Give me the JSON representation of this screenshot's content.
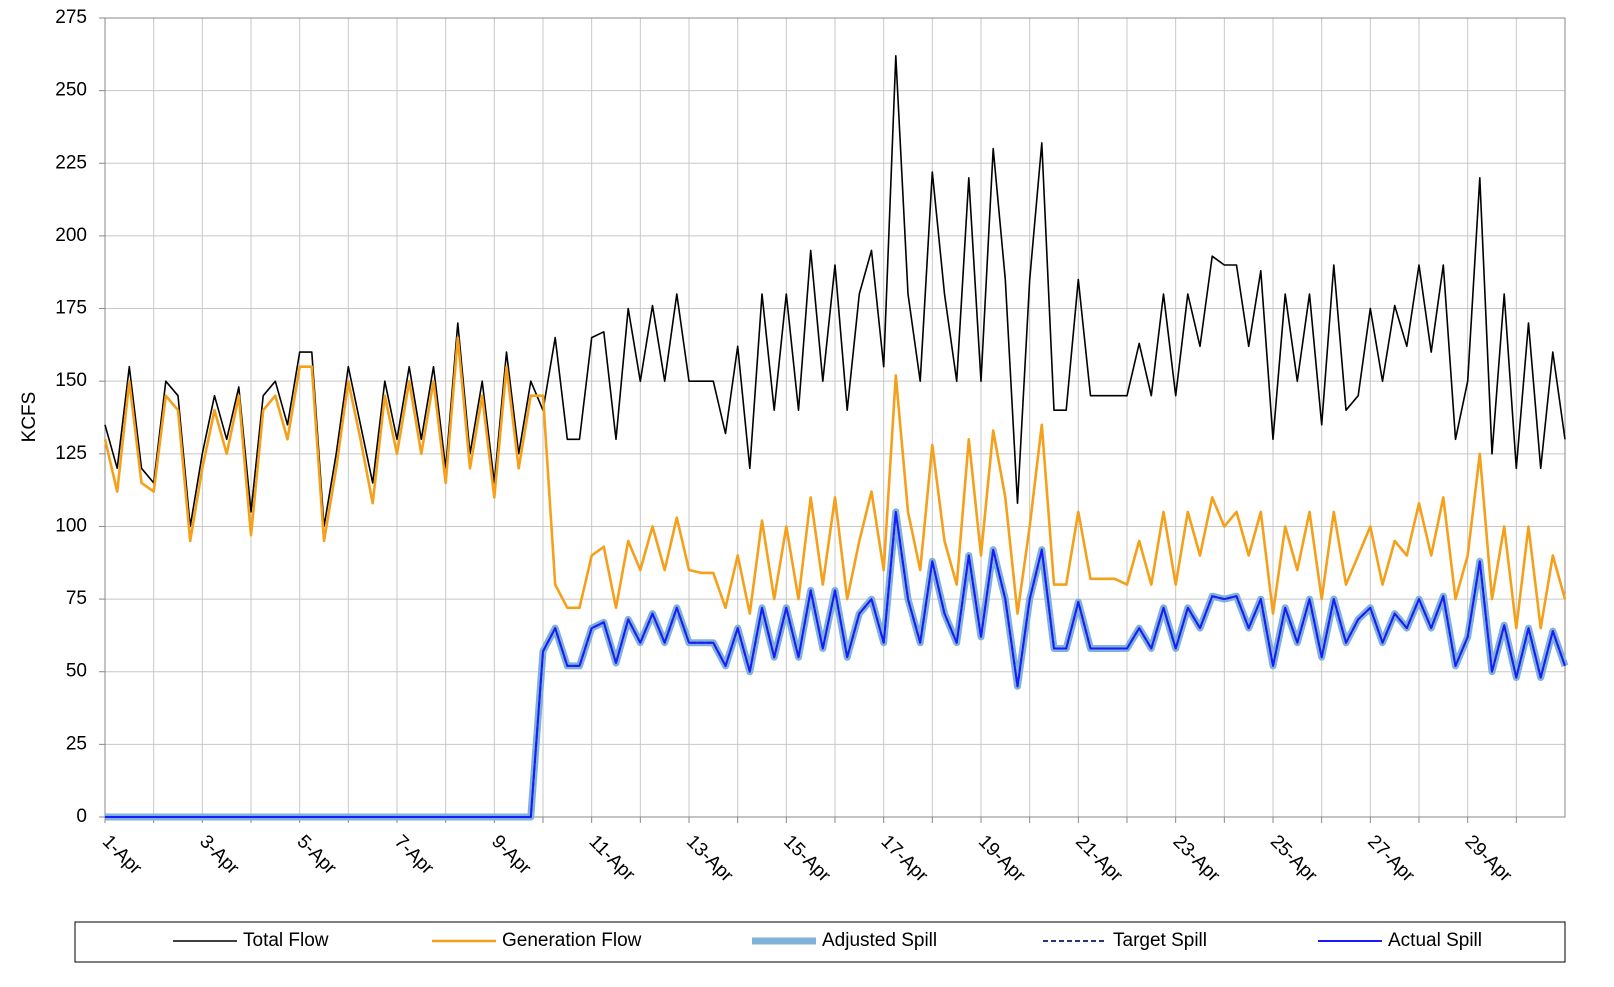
{
  "chart_data": {
    "type": "line",
    "ylabel": "KCFS",
    "x": [
      1,
      1.25,
      1.5,
      1.75,
      2,
      2.25,
      2.5,
      2.75,
      3,
      3.25,
      3.5,
      3.75,
      4,
      4.25,
      4.5,
      4.75,
      5,
      5.25,
      5.5,
      5.75,
      6,
      6.25,
      6.5,
      6.75,
      7,
      7.25,
      7.5,
      7.75,
      8,
      8.25,
      8.5,
      8.75,
      9,
      9.25,
      9.5,
      9.75,
      10,
      10.25,
      10.5,
      10.75,
      11,
      11.25,
      11.5,
      11.75,
      12,
      12.25,
      12.5,
      12.75,
      13,
      13.25,
      13.5,
      13.75,
      14,
      14.25,
      14.5,
      14.75,
      15,
      15.25,
      15.5,
      15.75,
      16,
      16.25,
      16.5,
      16.75,
      17,
      17.25,
      17.5,
      17.75,
      18,
      18.25,
      18.5,
      18.75,
      19,
      19.25,
      19.5,
      19.75,
      20,
      20.25,
      20.5,
      20.75,
      21,
      21.25,
      21.5,
      21.75,
      22,
      22.25,
      22.5,
      22.75,
      23,
      23.25,
      23.5,
      23.75,
      24,
      24.25,
      24.5,
      24.75,
      25,
      25.25,
      25.5,
      25.75,
      26,
      26.25,
      26.5,
      26.75,
      27,
      27.25,
      27.5,
      27.75,
      28,
      28.25,
      28.5,
      28.75,
      29,
      29.25,
      29.5,
      29.75,
      30,
      30.25,
      30.5,
      30.75,
      31
    ],
    "xlim": [
      1,
      31
    ],
    "xticks": [
      {
        "value": 1,
        "label": "1-Apr"
      },
      {
        "value": 3,
        "label": "3-Apr"
      },
      {
        "value": 5,
        "label": "5-Apr"
      },
      {
        "value": 7,
        "label": "7-Apr"
      },
      {
        "value": 9,
        "label": "9-Apr"
      },
      {
        "value": 11,
        "label": "11-Apr"
      },
      {
        "value": 13,
        "label": "13-Apr"
      },
      {
        "value": 15,
        "label": "15-Apr"
      },
      {
        "value": 17,
        "label": "17-Apr"
      },
      {
        "value": 19,
        "label": "19-Apr"
      },
      {
        "value": 21,
        "label": "21-Apr"
      },
      {
        "value": 23,
        "label": "23-Apr"
      },
      {
        "value": 25,
        "label": "25-Apr"
      },
      {
        "value": 27,
        "label": "27-Apr"
      },
      {
        "value": 29,
        "label": "29-Apr"
      }
    ],
    "xminorticks": [
      2,
      4,
      6,
      8,
      10,
      12,
      14,
      16,
      18,
      20,
      22,
      24,
      26,
      28,
      30
    ],
    "ylim": [
      0,
      275
    ],
    "yticks": [
      0,
      25,
      50,
      75,
      100,
      125,
      150,
      175,
      200,
      225,
      250,
      275
    ],
    "grid": true,
    "legend": "bottom",
    "series": [
      {
        "name": "Total Flow",
        "color": "#000000",
        "width": 1.6,
        "values": [
          135,
          120,
          155,
          120,
          115,
          150,
          145,
          100,
          125,
          145,
          130,
          148,
          105,
          145,
          150,
          135,
          160,
          160,
          100,
          125,
          155,
          135,
          115,
          150,
          130,
          155,
          130,
          155,
          120,
          170,
          125,
          150,
          115,
          160,
          125,
          150,
          140,
          165,
          130,
          130,
          165,
          167,
          130,
          175,
          150,
          176,
          150,
          180,
          150,
          150,
          150,
          132,
          162,
          120,
          180,
          140,
          180,
          140,
          195,
          150,
          190,
          140,
          180,
          195,
          155,
          262,
          180,
          150,
          222,
          180,
          150,
          220,
          150,
          230,
          185,
          108,
          185,
          232,
          140,
          140,
          185,
          145,
          145,
          145,
          145,
          163,
          145,
          180,
          145,
          180,
          162,
          193,
          190,
          190,
          162,
          188,
          130,
          180,
          150,
          180,
          135,
          190,
          140,
          145,
          175,
          150,
          176,
          162,
          190,
          160,
          190,
          130,
          150,
          220,
          125,
          180,
          120,
          170,
          120,
          160,
          130
        ]
      },
      {
        "name": "Generation Flow",
        "color": "#f5a01a",
        "width": 2.6,
        "values": [
          130,
          112,
          150,
          115,
          112,
          145,
          140,
          95,
          120,
          140,
          125,
          145,
          97,
          140,
          145,
          130,
          155,
          155,
          95,
          120,
          150,
          130,
          108,
          145,
          125,
          150,
          125,
          150,
          115,
          165,
          120,
          145,
          110,
          155,
          120,
          145,
          145,
          80,
          72,
          72,
          90,
          93,
          72,
          95,
          85,
          100,
          85,
          103,
          85,
          84,
          84,
          72,
          90,
          70,
          102,
          75,
          100,
          75,
          110,
          80,
          110,
          75,
          95,
          112,
          85,
          152,
          105,
          85,
          128,
          95,
          80,
          130,
          90,
          133,
          110,
          70,
          100,
          135,
          80,
          80,
          105,
          82,
          82,
          82,
          80,
          95,
          80,
          105,
          80,
          105,
          90,
          110,
          100,
          105,
          90,
          105,
          70,
          100,
          85,
          105,
          75,
          105,
          80,
          90,
          100,
          80,
          95,
          90,
          108,
          90,
          110,
          75,
          90,
          125,
          75,
          100,
          65,
          100,
          65,
          90,
          75
        ]
      },
      {
        "name": "Adjusted Spill",
        "color": "#7fb2d9",
        "width": 7,
        "values": [
          0,
          0,
          0,
          0,
          0,
          0,
          0,
          0,
          0,
          0,
          0,
          0,
          0,
          0,
          0,
          0,
          0,
          0,
          0,
          0,
          0,
          0,
          0,
          0,
          0,
          0,
          0,
          0,
          0,
          0,
          0,
          0,
          0,
          0,
          0,
          0,
          57,
          65,
          52,
          52,
          65,
          67,
          53,
          68,
          60,
          70,
          60,
          72,
          60,
          60,
          60,
          52,
          65,
          50,
          72,
          55,
          72,
          55,
          78,
          58,
          78,
          55,
          70,
          75,
          60,
          105,
          75,
          60,
          88,
          70,
          60,
          90,
          62,
          92,
          75,
          45,
          75,
          92,
          58,
          58,
          74,
          58,
          58,
          58,
          58,
          65,
          58,
          72,
          58,
          72,
          65,
          76,
          75,
          76,
          65,
          75,
          52,
          72,
          60,
          75,
          55,
          75,
          60,
          68,
          72,
          60,
          70,
          65,
          75,
          65,
          76,
          52,
          62,
          88,
          50,
          66,
          48,
          65,
          48,
          64,
          52
        ]
      },
      {
        "name": "Target Spill",
        "color": "#1f3a7a",
        "width": 2,
        "dash": true,
        "values": [
          0,
          0,
          0,
          0,
          0,
          0,
          0,
          0,
          0,
          0,
          0,
          0,
          0,
          0,
          0,
          0,
          0,
          0,
          0,
          0,
          0,
          0,
          0,
          0,
          0,
          0,
          0,
          0,
          0,
          0,
          0,
          0,
          0,
          0,
          0,
          0,
          57,
          65,
          52,
          52,
          65,
          67,
          53,
          68,
          60,
          70,
          60,
          72,
          60,
          60,
          60,
          52,
          65,
          50,
          72,
          55,
          72,
          55,
          78,
          58,
          78,
          55,
          70,
          75,
          60,
          105,
          75,
          60,
          88,
          70,
          60,
          90,
          62,
          92,
          75,
          45,
          75,
          92,
          58,
          58,
          74,
          58,
          58,
          58,
          58,
          65,
          58,
          72,
          58,
          72,
          65,
          76,
          75,
          76,
          65,
          75,
          52,
          72,
          60,
          75,
          55,
          75,
          60,
          68,
          72,
          60,
          70,
          65,
          75,
          65,
          76,
          52,
          62,
          88,
          50,
          66,
          48,
          65,
          48,
          64,
          52
        ]
      },
      {
        "name": "Actual Spill",
        "color": "#1a1aff",
        "width": 2,
        "values": [
          0,
          0,
          0,
          0,
          0,
          0,
          0,
          0,
          0,
          0,
          0,
          0,
          0,
          0,
          0,
          0,
          0,
          0,
          0,
          0,
          0,
          0,
          0,
          0,
          0,
          0,
          0,
          0,
          0,
          0,
          0,
          0,
          0,
          0,
          0,
          0,
          57,
          65,
          52,
          52,
          65,
          67,
          53,
          68,
          60,
          70,
          60,
          72,
          60,
          60,
          60,
          52,
          65,
          50,
          72,
          55,
          72,
          55,
          78,
          58,
          78,
          55,
          70,
          75,
          60,
          105,
          75,
          60,
          88,
          70,
          60,
          90,
          62,
          92,
          75,
          45,
          75,
          92,
          58,
          58,
          74,
          58,
          58,
          58,
          58,
          65,
          58,
          72,
          58,
          72,
          65,
          76,
          75,
          76,
          65,
          75,
          52,
          72,
          60,
          75,
          55,
          75,
          60,
          68,
          72,
          60,
          70,
          65,
          75,
          65,
          76,
          52,
          62,
          88,
          50,
          66,
          48,
          65,
          48,
          64,
          52
        ]
      }
    ]
  }
}
